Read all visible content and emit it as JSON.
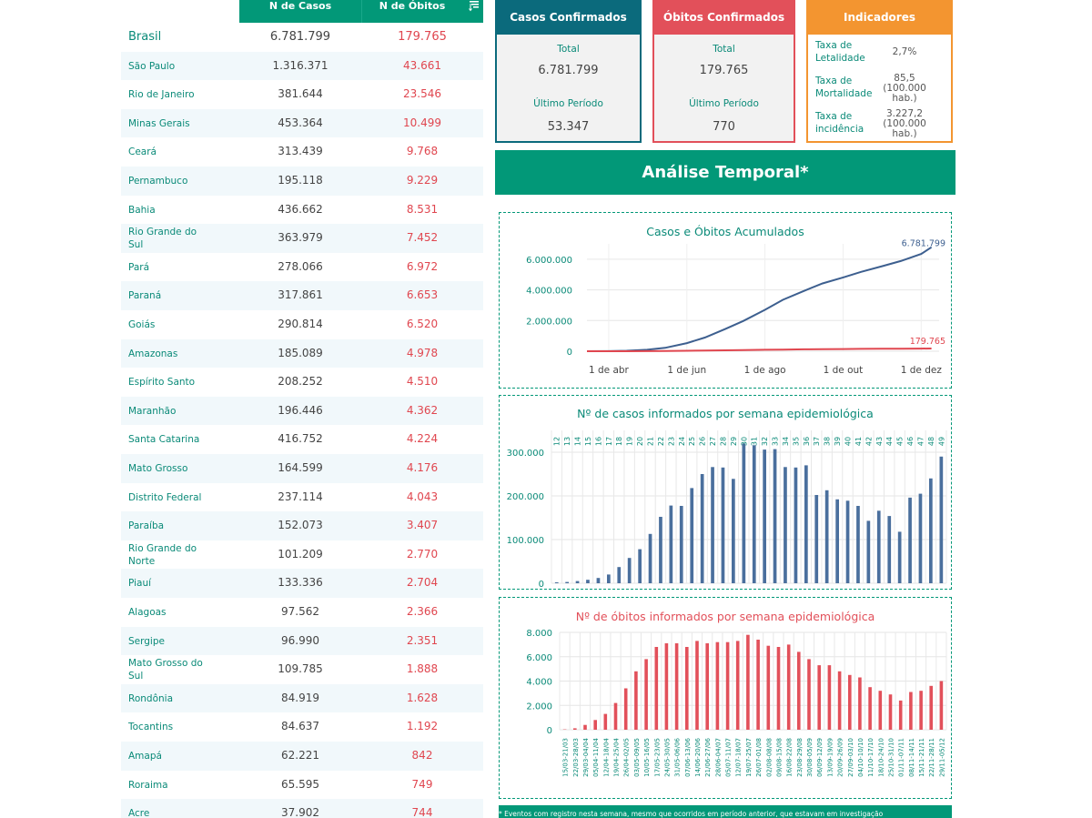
{
  "table": {
    "headers": {
      "cases": "N de Casos",
      "deaths": "N de Óbitos"
    },
    "sort_icon": "sort-icon",
    "rows": [
      {
        "name": "Brasil",
        "cases": "6.781.799",
        "deaths": "179.765"
      },
      {
        "name": "São Paulo",
        "cases": "1.316.371",
        "deaths": "43.661"
      },
      {
        "name": "Rio de Janeiro",
        "cases": "381.644",
        "deaths": "23.546"
      },
      {
        "name": "Minas Gerais",
        "cases": "453.364",
        "deaths": "10.499"
      },
      {
        "name": "Ceará",
        "cases": "313.439",
        "deaths": "9.768"
      },
      {
        "name": "Pernambuco",
        "cases": "195.118",
        "deaths": "9.229"
      },
      {
        "name": "Bahia",
        "cases": "436.662",
        "deaths": "8.531"
      },
      {
        "name": "Rio Grande do Sul",
        "cases": "363.979",
        "deaths": "7.452"
      },
      {
        "name": "Pará",
        "cases": "278.066",
        "deaths": "6.972"
      },
      {
        "name": "Paraná",
        "cases": "317.861",
        "deaths": "6.653"
      },
      {
        "name": "Goiás",
        "cases": "290.814",
        "deaths": "6.520"
      },
      {
        "name": "Amazonas",
        "cases": "185.089",
        "deaths": "4.978"
      },
      {
        "name": "Espírito Santo",
        "cases": "208.252",
        "deaths": "4.510"
      },
      {
        "name": "Maranhão",
        "cases": "196.446",
        "deaths": "4.362"
      },
      {
        "name": "Santa Catarina",
        "cases": "416.752",
        "deaths": "4.224"
      },
      {
        "name": "Mato Grosso",
        "cases": "164.599",
        "deaths": "4.176"
      },
      {
        "name": "Distrito Federal",
        "cases": "237.114",
        "deaths": "4.043"
      },
      {
        "name": "Paraíba",
        "cases": "152.073",
        "deaths": "3.407"
      },
      {
        "name": "Rio Grande do Norte",
        "cases": "101.209",
        "deaths": "2.770"
      },
      {
        "name": "Piauí",
        "cases": "133.336",
        "deaths": "2.704"
      },
      {
        "name": "Alagoas",
        "cases": "97.562",
        "deaths": "2.366"
      },
      {
        "name": "Sergipe",
        "cases": "96.990",
        "deaths": "2.351"
      },
      {
        "name": "Mato Grosso do Sul",
        "cases": "109.785",
        "deaths": "1.888"
      },
      {
        "name": "Rondônia",
        "cases": "84.919",
        "deaths": "1.628"
      },
      {
        "name": "Tocantins",
        "cases": "84.637",
        "deaths": "1.192"
      },
      {
        "name": "Amapá",
        "cases": "62.221",
        "deaths": "842"
      },
      {
        "name": "Roraima",
        "cases": "65.595",
        "deaths": "749"
      },
      {
        "name": "Acre",
        "cases": "37.902",
        "deaths": "744"
      }
    ]
  },
  "cards": {
    "cases": {
      "title": "Casos Confirmados",
      "total_label": "Total",
      "total": "6.781.799",
      "period_label": "Último Período",
      "period": "53.347",
      "color": "#0b6a7c"
    },
    "deaths": {
      "title": "Óbitos Confirmados",
      "total_label": "Total",
      "total": "179.765",
      "period_label": "Último Período",
      "period": "770",
      "color": "#e2505a"
    },
    "indicators": {
      "title": "Indicadores",
      "color": "#f39530",
      "items": [
        {
          "label": "Taxa de Letalidade",
          "value": "2,7%"
        },
        {
          "label": "Taxa de Mortalidade",
          "value": "85,5 (100.000 hab.)"
        },
        {
          "label": "Taxa de incidência",
          "value": "3.227,2 (100.000 hab.)"
        }
      ]
    }
  },
  "banner": "Análise Temporal*",
  "footnote": "* Eventos com registro nesta semana, mesmo que ocorridos em período anterior, que estavam em investigação",
  "colors": {
    "accent": "#029878",
    "cases": "#4a6f9d",
    "deaths": "#e2505a",
    "line_cases": "#3d5f8f",
    "line_deaths": "#e0464f"
  },
  "chart_data": [
    {
      "type": "line",
      "title": "Casos e Óbitos Acumulados",
      "x_ticks": [
        "1 de abr",
        "1 de jun",
        "1 de ago",
        "1 de out",
        "1 de dez"
      ],
      "y_ticks": [
        "0",
        "2.000.000",
        "4.000.000",
        "6.000.000"
      ],
      "ylim": [
        0,
        7000000
      ],
      "x": [
        "2020-03-15",
        "2020-04-01",
        "2020-04-15",
        "2020-05-01",
        "2020-05-15",
        "2020-06-01",
        "2020-06-15",
        "2020-07-01",
        "2020-07-15",
        "2020-08-01",
        "2020-08-15",
        "2020-09-01",
        "2020-09-15",
        "2020-10-01",
        "2020-10-15",
        "2020-11-01",
        "2020-11-15",
        "2020-12-01",
        "2020-12-09"
      ],
      "series": [
        {
          "name": "casos",
          "values": [
            200,
            6800,
            28000,
            92000,
            220000,
            530000,
            890000,
            1450000,
            1970000,
            2700000,
            3350000,
            3950000,
            4420000,
            4810000,
            5170000,
            5550000,
            5880000,
            6340000,
            6781799
          ],
          "end_label": "6.781.799"
        },
        {
          "name": "óbitos",
          "values": [
            0,
            240,
            1900,
            6300,
            14800,
            30000,
            44000,
            60000,
            76000,
            93000,
            107000,
            122000,
            134000,
            144000,
            152000,
            160000,
            166000,
            174000,
            179765
          ],
          "end_label": "179.765"
        }
      ],
      "grid": true
    },
    {
      "type": "bar",
      "title": "Nº de casos informados por semana epidemiológica",
      "categories": [
        "12",
        "13",
        "14",
        "15",
        "16",
        "17",
        "18",
        "19",
        "20",
        "21",
        "22",
        "23",
        "24",
        "25",
        "26",
        "27",
        "28",
        "29",
        "30",
        "31",
        "32",
        "33",
        "34",
        "35",
        "36",
        "37",
        "38",
        "39",
        "40",
        "41",
        "42",
        "43",
        "44",
        "45",
        "46",
        "47",
        "48",
        "49"
      ],
      "values": [
        2000,
        3000,
        5000,
        8000,
        12000,
        20000,
        37000,
        58000,
        78000,
        113000,
        152000,
        178000,
        177000,
        218000,
        250000,
        266000,
        265000,
        239000,
        320000,
        316000,
        306000,
        307000,
        266000,
        265000,
        270000,
        202000,
        213000,
        192000,
        189000,
        177000,
        143000,
        166000,
        154000,
        118000,
        196000,
        205000,
        240000,
        290000
      ],
      "y_ticks": [
        "0",
        "100.000",
        "200.000",
        "300.000"
      ],
      "ylim": [
        0,
        350000
      ],
      "grid": true
    },
    {
      "type": "bar",
      "title": "Nº de óbitos informados por semana epidemiológica",
      "categories": [
        "15/03-21/03",
        "22/03-28/03",
        "29/03-04/04",
        "05/04-11/04",
        "12/04-18/04",
        "19/04-25/04",
        "26/04-02/05",
        "03/05-09/05",
        "10/05-16/05",
        "17/05-23/05",
        "24/05-30/05",
        "31/05-06/06",
        "07/06-13/06",
        "14/06-20/06",
        "21/06-27/06",
        "28/06-04/07",
        "05/07-11/07",
        "12/07-18/07",
        "19/07-25/07",
        "26/07-01/08",
        "02/08-08/08",
        "09/08-15/08",
        "16/08-22/08",
        "23/08-29/08",
        "30/08-05/09",
        "06/09-12/09",
        "13/09-19/09",
        "20/09-26/09",
        "27/09-03/10",
        "04/10-10/10",
        "11/10-17/10",
        "18/10-24/10",
        "25/10-31/10",
        "01/11-07/11",
        "08/11-14/11",
        "15/11-21/11",
        "22/11-28/11",
        "29/11-05/12"
      ],
      "values": [
        30,
        120,
        400,
        800,
        1300,
        2200,
        3400,
        4800,
        5800,
        6800,
        7100,
        7100,
        6800,
        7300,
        7100,
        7200,
        7200,
        7300,
        7800,
        7400,
        6900,
        6800,
        7000,
        6400,
        5800,
        5300,
        5300,
        4800,
        4500,
        4300,
        3500,
        3200,
        2900,
        2400,
        3100,
        3200,
        3600,
        4000
      ],
      "y_ticks": [
        "0",
        "2.000",
        "4.000",
        "6.000",
        "8.000"
      ],
      "ylim": [
        0,
        8000
      ],
      "grid": true
    }
  ]
}
